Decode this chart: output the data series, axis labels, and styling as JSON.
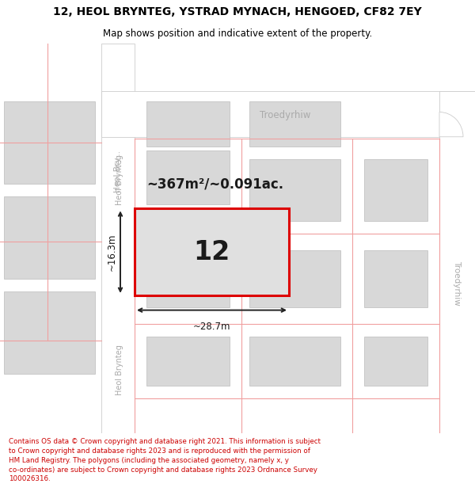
{
  "title": "12, HEOL BRYNTEG, YSTRAD MYNACH, HENGOED, CF82 7EY",
  "subtitle": "Map shows position and indicative extent of the property.",
  "footer_line1": "Contains OS data © Crown copyright and database right 2021. This information is subject",
  "footer_line2": "to Crown copyright and database rights 2023 and is reproduced with the permission of",
  "footer_line3": "HM Land Registry. The polygons (including the associated geometry, namely x, y",
  "footer_line4": "co-ordinates) are subject to Crown copyright and database rights 2023 Ordnance Survey",
  "footer_line5": "100026316.",
  "bg_color": "#efefef",
  "road_fill": "#ffffff",
  "road_edge": "#cccccc",
  "pink": "#f0a0a0",
  "building_fill": "#d8d8d8",
  "building_edge": "#bbbbbb",
  "plot_fill": "#e0e0e0",
  "plot_edge": "#dd0000",
  "plot_edge_width": 2.2,
  "dim_color": "#222222",
  "text_dark": "#1a1a1a",
  "street_color": "#aaaaaa",
  "label_12": "12",
  "area_label": "~367m²/~0.091ac.",
  "dim_w": "~28.7m",
  "dim_h": "~16.3m",
  "footer_color": "#cc0000",
  "title_fontsize": 10,
  "subtitle_fontsize": 8.5
}
